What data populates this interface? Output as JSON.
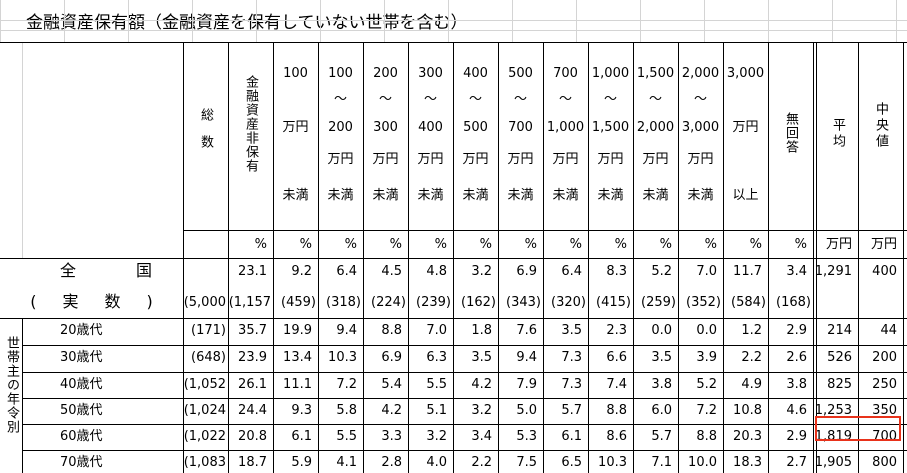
{
  "title": "金融資産保有額（金融資産を保有していない世帯を含む）",
  "header": {
    "total": "総数",
    "none": "金融資産非保有",
    "ranges": [
      [
        "100",
        "万円",
        "未満"
      ],
      [
        "100",
        "～",
        "200",
        "万円",
        "未満"
      ],
      [
        "200",
        "～",
        "300",
        "万円",
        "未満"
      ],
      [
        "300",
        "～",
        "400",
        "万円",
        "未満"
      ],
      [
        "400",
        "～",
        "500",
        "万円",
        "未満"
      ],
      [
        "500",
        "～",
        "700",
        "万円",
        "未満"
      ],
      [
        "700",
        "～",
        "1,000",
        "万円",
        "未満"
      ],
      [
        "1,000",
        "～",
        "1,500",
        "万円",
        "未満"
      ],
      [
        "1,500",
        "～",
        "2,000",
        "万円",
        "未満"
      ],
      [
        "2,000",
        "～",
        "3,000",
        "万円",
        "未満"
      ],
      [
        "3,000",
        "万円",
        "以上"
      ]
    ],
    "no_answer": "無回答",
    "mean": "平均",
    "median": "中央値",
    "units": [
      "%",
      "%",
      "%",
      "%",
      "%",
      "%",
      "%",
      "%",
      "%",
      "%",
      "%",
      "%",
      "%",
      "万円",
      "万円"
    ]
  },
  "national": {
    "label": "全国",
    "values": [
      "23.1",
      "9.2",
      "6.4",
      "4.5",
      "4.8",
      "3.2",
      "6.9",
      "6.4",
      "8.3",
      "5.2",
      "7.0",
      "11.7",
      "3.4",
      "1,291",
      "400"
    ]
  },
  "actual": {
    "label": "(実数)",
    "values": [
      "(5,000",
      "(1,157",
      "(459)",
      "(318)",
      "(224)",
      "(239)",
      "(162)",
      "(343)",
      "(320)",
      "(415)",
      "(259)",
      "(352)",
      "(584)",
      "(168)"
    ]
  },
  "group_label": "世帯主の年令別",
  "rows": [
    {
      "label": "20歳代",
      "values": [
        "(171)",
        "35.7",
        "19.9",
        "9.4",
        "8.8",
        "7.0",
        "1.8",
        "7.6",
        "3.5",
        "2.3",
        "0.0",
        "0.0",
        "1.2",
        "2.9",
        "214",
        "44"
      ]
    },
    {
      "label": "30歳代",
      "values": [
        "(648)",
        "23.9",
        "13.4",
        "10.3",
        "6.9",
        "6.3",
        "3.5",
        "9.4",
        "7.3",
        "6.6",
        "3.5",
        "3.9",
        "2.2",
        "2.6",
        "526",
        "200"
      ]
    },
    {
      "label": "40歳代",
      "values": [
        "(1,052",
        "26.1",
        "11.1",
        "7.2",
        "5.4",
        "5.5",
        "4.2",
        "7.9",
        "7.3",
        "7.4",
        "3.8",
        "5.2",
        "4.9",
        "3.8",
        "825",
        "250"
      ]
    },
    {
      "label": "50歳代",
      "values": [
        "(1,024",
        "24.4",
        "9.3",
        "5.8",
        "4.2",
        "5.1",
        "3.2",
        "5.0",
        "5.7",
        "8.8",
        "6.0",
        "7.2",
        "10.8",
        "4.6",
        "1,253",
        "350"
      ]
    },
    {
      "label": "60歳代",
      "values": [
        "(1,022",
        "20.8",
        "6.1",
        "5.5",
        "3.3",
        "3.2",
        "3.4",
        "5.3",
        "6.1",
        "8.6",
        "5.7",
        "8.8",
        "20.3",
        "2.9",
        "1,819",
        "700"
      ]
    },
    {
      "label": "70歳代",
      "values": [
        "(1,083",
        "18.7",
        "5.9",
        "4.1",
        "2.8",
        "4.0",
        "2.2",
        "7.5",
        "6.5",
        "10.3",
        "7.1",
        "10.0",
        "18.3",
        "2.7",
        "1,905",
        "800"
      ]
    }
  ]
}
